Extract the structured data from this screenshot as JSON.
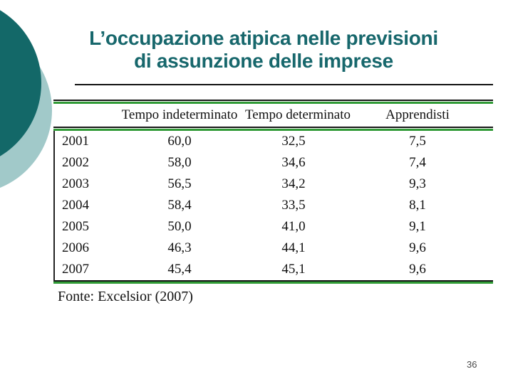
{
  "slide": {
    "title_line1": "L’occupazione atipica nelle previsioni",
    "title_line2": "di assunzione delle imprese",
    "page_number": "36"
  },
  "table": {
    "headers": [
      "Tempo indeterminato",
      "Tempo determinato",
      "Apprendisti"
    ],
    "rows": [
      {
        "year": "2001",
        "values": [
          "60,0",
          "32,5",
          "7,5"
        ]
      },
      {
        "year": "2002",
        "values": [
          "58,0",
          "34,6",
          "7,4"
        ]
      },
      {
        "year": "2003",
        "values": [
          "56,5",
          "34,2",
          "9,3"
        ]
      },
      {
        "year": "2004",
        "values": [
          "58,4",
          "33,5",
          "8,1"
        ]
      },
      {
        "year": "2005",
        "values": [
          "50,0",
          "41,0",
          "9,1"
        ]
      },
      {
        "year": "2006",
        "values": [
          "46,3",
          "44,1",
          "9,6"
        ]
      },
      {
        "year": "2007",
        "values": [
          "45,4",
          "45,1",
          "9,6"
        ]
      }
    ],
    "source_note": "Fonte: Excelsior (2007)"
  },
  "colors": {
    "accent_dark_teal": "#136868",
    "accent_light_teal": "#a1c9c9",
    "title_teal": "#17676c",
    "table_line_green": "#2f9a35"
  }
}
